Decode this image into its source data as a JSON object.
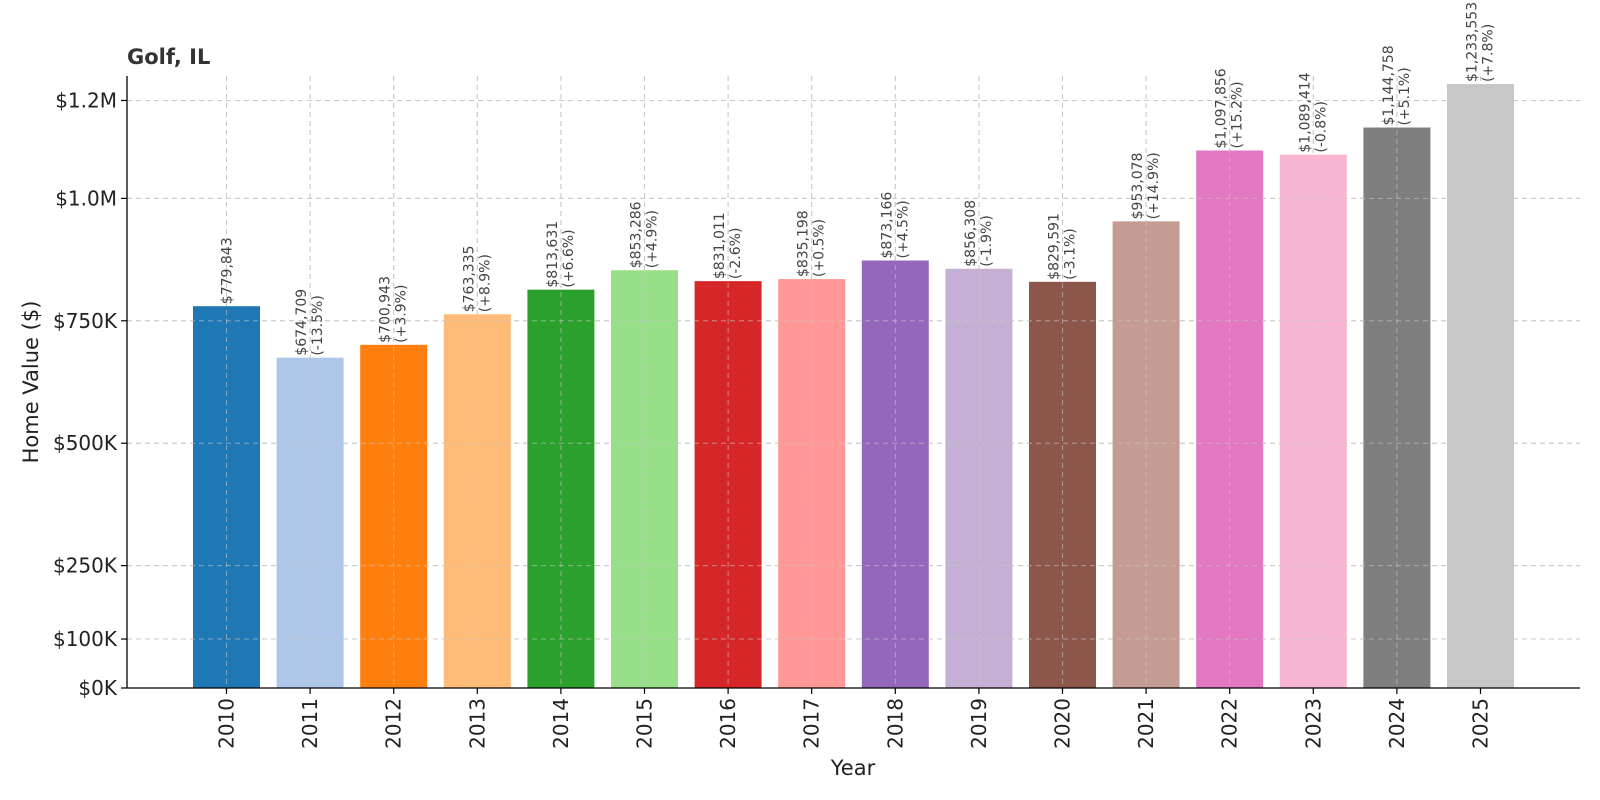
{
  "chart_data": {
    "type": "bar",
    "title": "Golf, IL",
    "xlabel": "Year",
    "ylabel": "Home Value ($)",
    "ylim": [
      0,
      1250000
    ],
    "grid": true,
    "categories": [
      "2010",
      "2011",
      "2012",
      "2013",
      "2014",
      "2015",
      "2016",
      "2017",
      "2018",
      "2019",
      "2020",
      "2021",
      "2022",
      "2023",
      "2024",
      "2025"
    ],
    "values": [
      779843,
      674709,
      700943,
      763335,
      813631,
      853286,
      831011,
      835198,
      873166,
      856308,
      829591,
      953078,
      1097856,
      1089414,
      1144758,
      1233553
    ],
    "value_labels": [
      "$779,843",
      "$674,709",
      "$700,943",
      "$763,335",
      "$813,631",
      "$853,286",
      "$831,011",
      "$835,198",
      "$873,166",
      "$856,308",
      "$829,591",
      "$953,078",
      "$1,097,856",
      "$1,089,414",
      "$1,144,758",
      "$1,233,553"
    ],
    "change_labels": [
      "",
      "(-13.5%)",
      "(+3.9%)",
      "(+8.9%)",
      "(+6.6%)",
      "(+4.9%)",
      "(-2.6%)",
      "(+0.5%)",
      "(+4.5%)",
      "(-1.9%)",
      "(-3.1%)",
      "(+14.9%)",
      "(+15.2%)",
      "(-0.8%)",
      "(+5.1%)",
      "(+7.8%)"
    ],
    "colors": [
      "#1f77b4",
      "#aec7e8",
      "#ff7f0e",
      "#ffbb78",
      "#2ca02c",
      "#98df8a",
      "#d62728",
      "#ff9896",
      "#9467bd",
      "#c5b0d5",
      "#8c564b",
      "#c49c94",
      "#e377c2",
      "#f7b6d2",
      "#7f7f7f",
      "#c7c7c7"
    ],
    "yticks": [
      0,
      100000,
      250000,
      500000,
      750000,
      1000000,
      1200000
    ],
    "ytick_labels": [
      "$0K",
      "$100K",
      "$250K",
      "$500K",
      "$750K",
      "$1.0M",
      "$1.2M"
    ]
  }
}
